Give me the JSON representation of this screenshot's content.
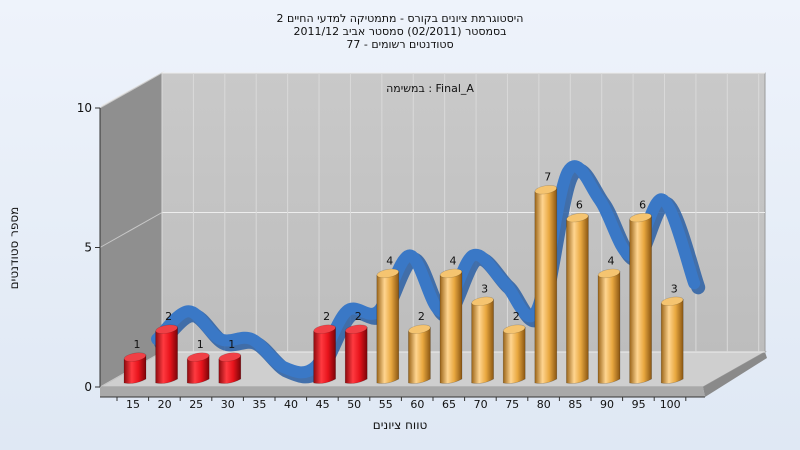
{
  "chart_data": {
    "type": "bar",
    "title": [
      "היסטוגרמת ציונים בקורס - מתמטיקה למדעי החיים 2",
      "בסמסטר  (02/2011)  סמסטר אביב 2011/12",
      "סטודנטים רשומים - 77"
    ],
    "annotation": "Final_A : במשימה",
    "xlabel": "טווח ציונים",
    "ylabel": "מספר סטודנטים",
    "ylim": [
      0,
      10
    ],
    "y_ticks": [
      "0",
      "5",
      "10"
    ],
    "categories": [
      "15",
      "20",
      "25",
      "30",
      "35",
      "40",
      "45",
      "50",
      "55",
      "60",
      "65",
      "70",
      "75",
      "80",
      "85",
      "90",
      "95",
      "100"
    ],
    "values": [
      1,
      2,
      1,
      1,
      0,
      0,
      2,
      2,
      4,
      2,
      4,
      3,
      2,
      7,
      6,
      4,
      6,
      3
    ],
    "bar_colors": {
      "below_55": "#e8141c",
      "from_55": "#e9a840"
    },
    "trend_line": {
      "color": "#3a78c6",
      "description": "smoothed ribbon following bar heights"
    },
    "grid": true,
    "legend": "none"
  }
}
